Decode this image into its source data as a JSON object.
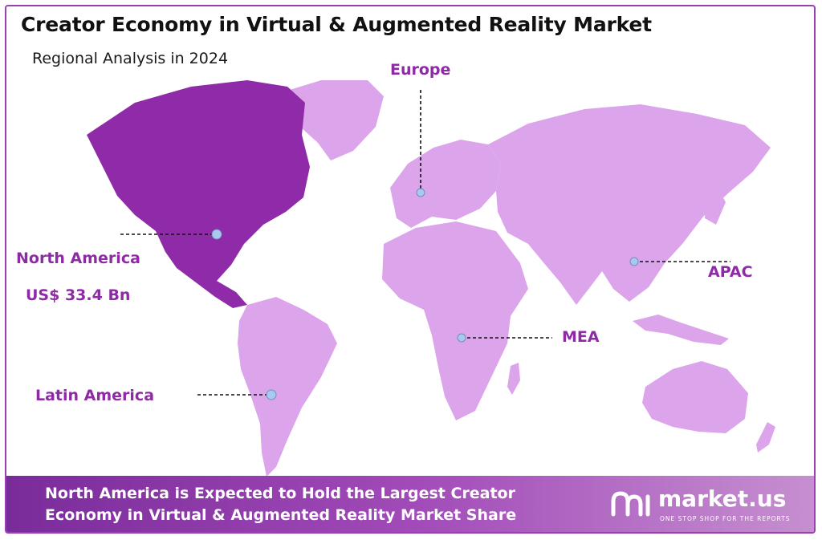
{
  "header": {
    "title": "Creator Economy in Virtual & Augmented Reality Market",
    "subtitle": "Regional Analysis in 2024"
  },
  "regions": [
    {
      "name": "North America",
      "value": "US$ 33.4 Bn",
      "highlighted": true
    },
    {
      "name": "Europe"
    },
    {
      "name": "APAC"
    },
    {
      "name": "MEA"
    },
    {
      "name": "Latin America"
    }
  ],
  "footer": {
    "line1": "North America is Expected to Hold the Largest Creator",
    "line2": "Economy in Virtual & Augmented Reality Market Share"
  },
  "brand": {
    "name": "market.us",
    "tagline": "ONE STOP SHOP FOR THE REPORTS"
  },
  "colors": {
    "highlight": "#8f2aa8",
    "land": "#dca4ea",
    "label": "#8e2aa6",
    "marker": "#a9c8ef"
  }
}
